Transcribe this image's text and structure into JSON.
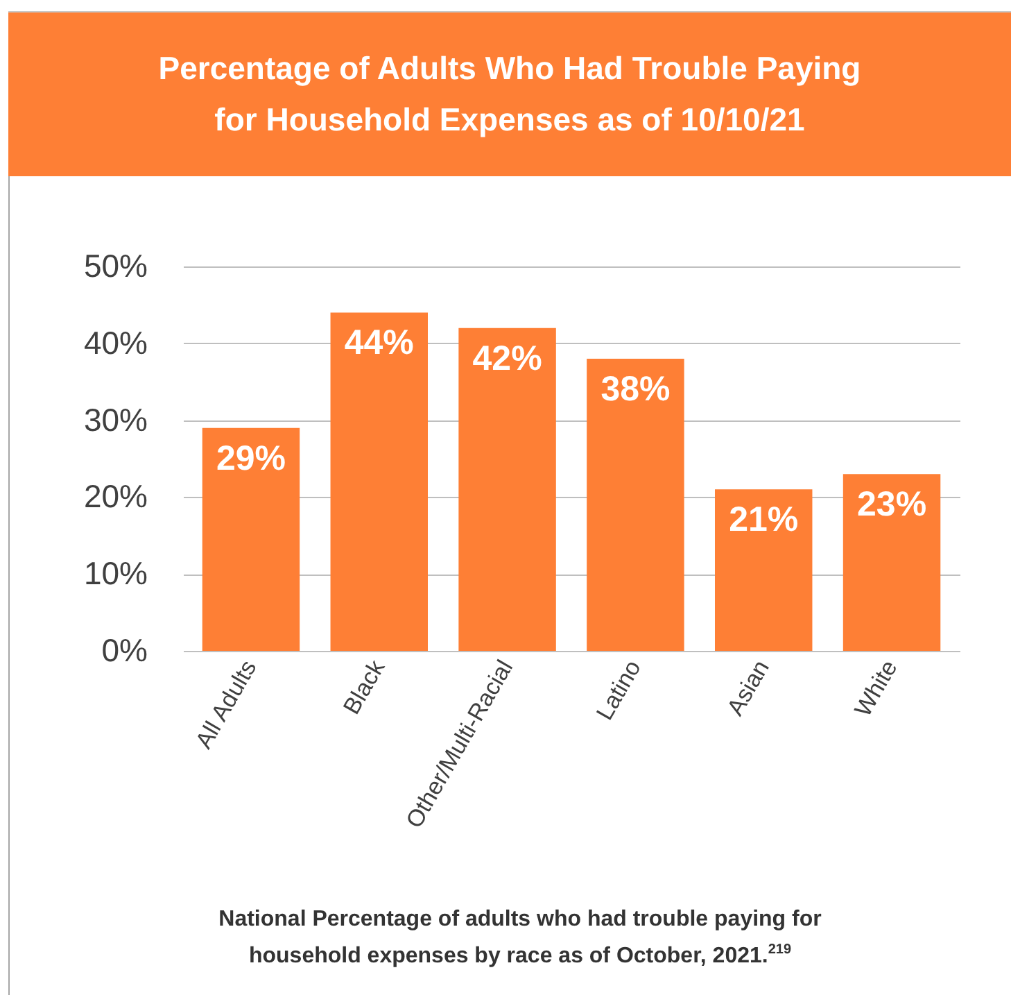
{
  "chart_data": {
    "type": "bar",
    "title": "Percentage of Adults Who Had Trouble Paying for Household Expenses as of 10/10/21",
    "categories": [
      "All Adults",
      "Black",
      "Other/Multi-Racial",
      "Latino",
      "Asian",
      "White"
    ],
    "values": [
      29,
      44,
      42,
      38,
      21,
      23
    ],
    "value_labels": [
      "29%",
      "44%",
      "42%",
      "38%",
      "21%",
      "23%"
    ],
    "color": "#fe7f35",
    "ylim": [
      0,
      50
    ],
    "yticks": [
      {
        "value": 0,
        "label": "0%"
      },
      {
        "value": 10,
        "label": "10%"
      },
      {
        "value": 20,
        "label": "20%"
      },
      {
        "value": 30,
        "label": "30%"
      },
      {
        "value": 40,
        "label": "40%"
      },
      {
        "value": 50,
        "label": "50%"
      }
    ],
    "grid": "y",
    "annotations": [
      "National Percentage of adults who had trouble paying for household expenses by race as of October, 2021.$^{219}$"
    ]
  }
}
